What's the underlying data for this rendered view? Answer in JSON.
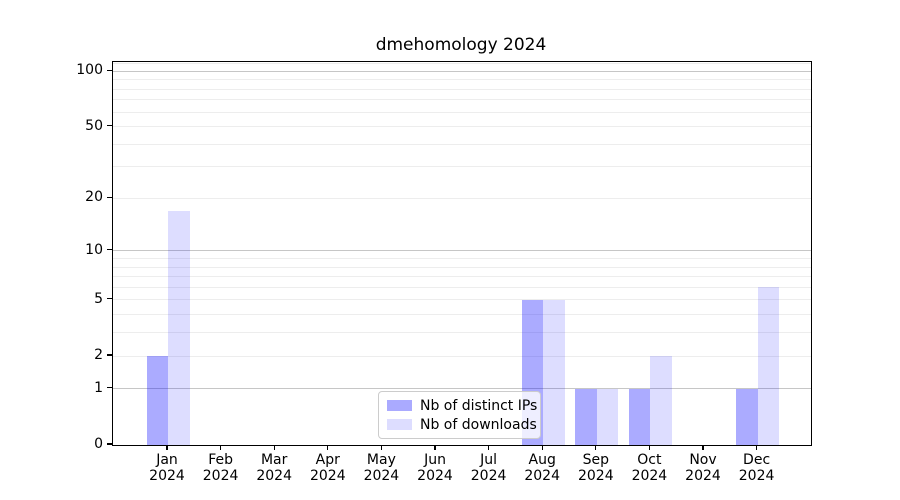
{
  "chart_data": {
    "type": "bar",
    "title": "dmehomology 2024",
    "categories": [
      "Jan",
      "Feb",
      "Mar",
      "Apr",
      "May",
      "Jun",
      "Jul",
      "Aug",
      "Sep",
      "Oct",
      "Nov",
      "Dec"
    ],
    "year_label": "2024",
    "series": [
      {
        "name": "Nb of distinct IPs",
        "color": "#aaaaff",
        "color_rgba": "rgba(0,0,255,0.33)",
        "values": [
          2,
          0,
          0,
          0,
          0,
          0,
          0,
          5,
          1,
          1,
          0,
          1
        ]
      },
      {
        "name": "Nb of downloads",
        "color": "#ddddff",
        "color_rgba": "rgba(0,0,255,0.135)",
        "values": [
          17,
          0,
          0,
          0,
          0,
          0,
          0,
          5,
          1,
          2,
          0,
          6
        ]
      }
    ],
    "yscale": "log(1+y)",
    "ylim": [
      0,
      112
    ],
    "yticks": [
      0,
      1,
      2,
      5,
      10,
      20,
      50,
      100
    ],
    "grid_major": [
      1,
      10,
      100
    ],
    "grid_minor": [
      2,
      3,
      4,
      5,
      6,
      7,
      8,
      9,
      20,
      30,
      40,
      50,
      60,
      70,
      80,
      90,
      110
    ],
    "legend_position": "lower center",
    "grid": "on",
    "colors": {
      "grid_major": "#c6c6c6",
      "grid_minor": "#ededed",
      "spine": "#000000",
      "text": "#000000",
      "legend_border": "#cccccc"
    }
  }
}
